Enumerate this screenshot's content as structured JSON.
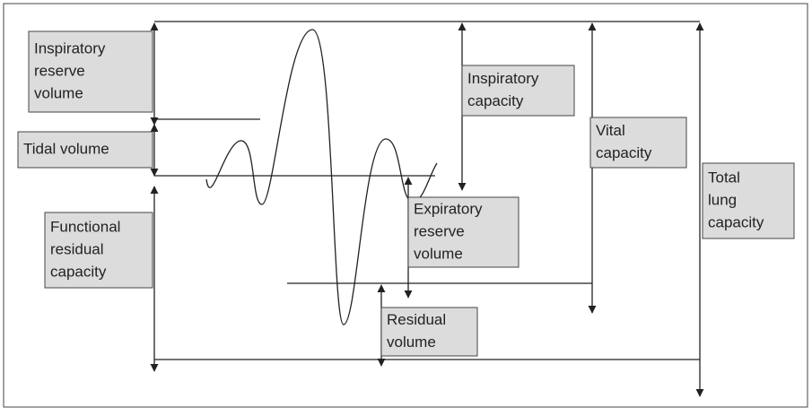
{
  "labels": [
    {
      "lines": [
        "Inspiratory",
        "reserve",
        "volume"
      ]
    },
    {
      "lines": [
        "Tidal volume"
      ]
    },
    {
      "lines": [
        "Functional",
        "residual",
        "capacity"
      ]
    },
    {
      "lines": [
        "Inspiratory",
        "capacity"
      ]
    },
    {
      "lines": [
        "Vital",
        "capacity"
      ]
    },
    {
      "lines": [
        "Total",
        "lung",
        "capacity"
      ]
    },
    {
      "lines": [
        "Expiratory",
        "reserve",
        "volume"
      ]
    },
    {
      "lines": [
        "Residual",
        "volume"
      ]
    }
  ]
}
